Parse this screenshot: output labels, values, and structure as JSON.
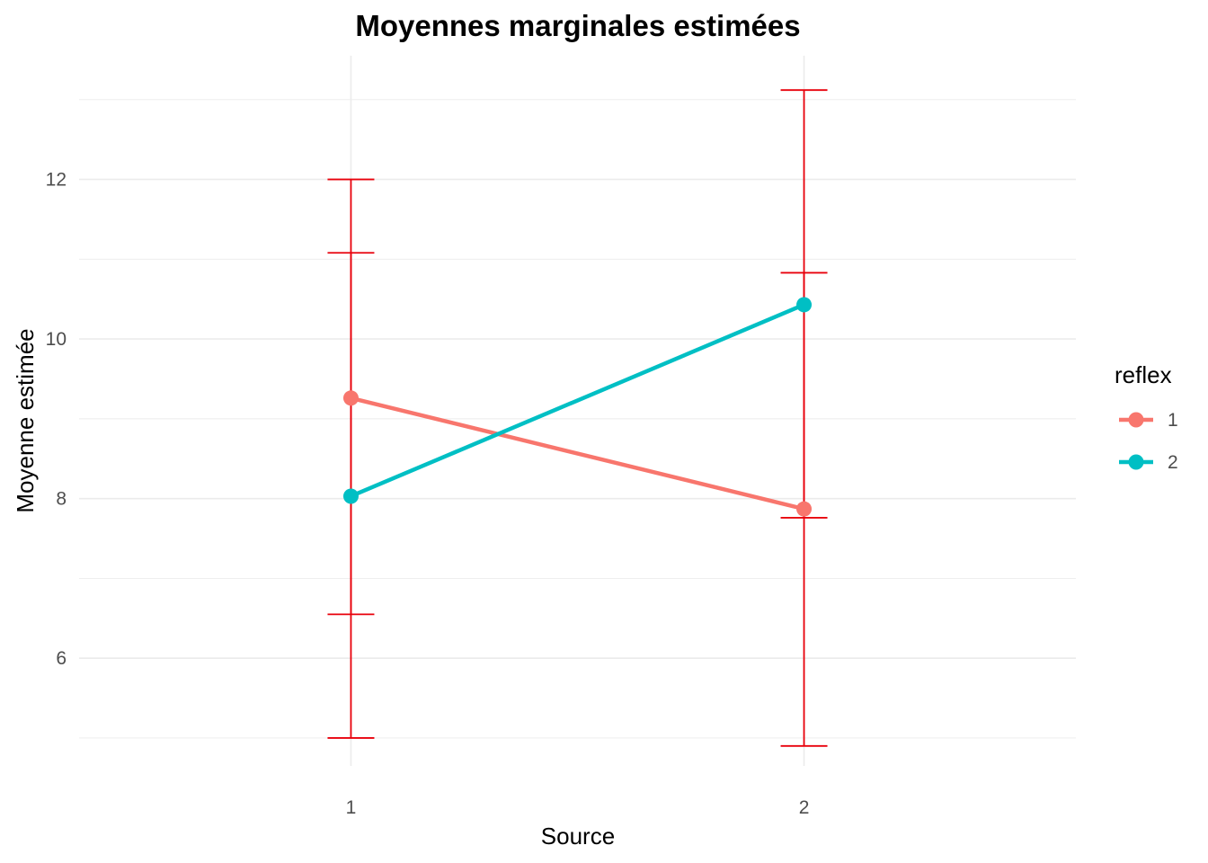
{
  "chart_data": {
    "type": "line",
    "title": "Moyennes marginales estimées",
    "xlabel": "Source",
    "ylabel": "Moyenne estimée",
    "categories": [
      "1",
      "2"
    ],
    "ylim": [
      4.65,
      13.55
    ],
    "yticks": [
      "6",
      "8",
      "10",
      "12"
    ],
    "grid": true,
    "legend": {
      "title": "reflex",
      "position": "right"
    },
    "series": [
      {
        "name": "1",
        "color": "#F8766D",
        "values": [
          9.26,
          7.87
        ],
        "ci_low": [
          5.0,
          4.9
        ],
        "ci_high": [
          12.0,
          10.83
        ]
      },
      {
        "name": "2",
        "color": "#00BFC4",
        "values": [
          8.03,
          10.43
        ],
        "ci_low": [
          6.55,
          7.76
        ],
        "ci_high": [
          11.08,
          13.12
        ]
      }
    ],
    "errorbar_color": "#E8000B"
  }
}
